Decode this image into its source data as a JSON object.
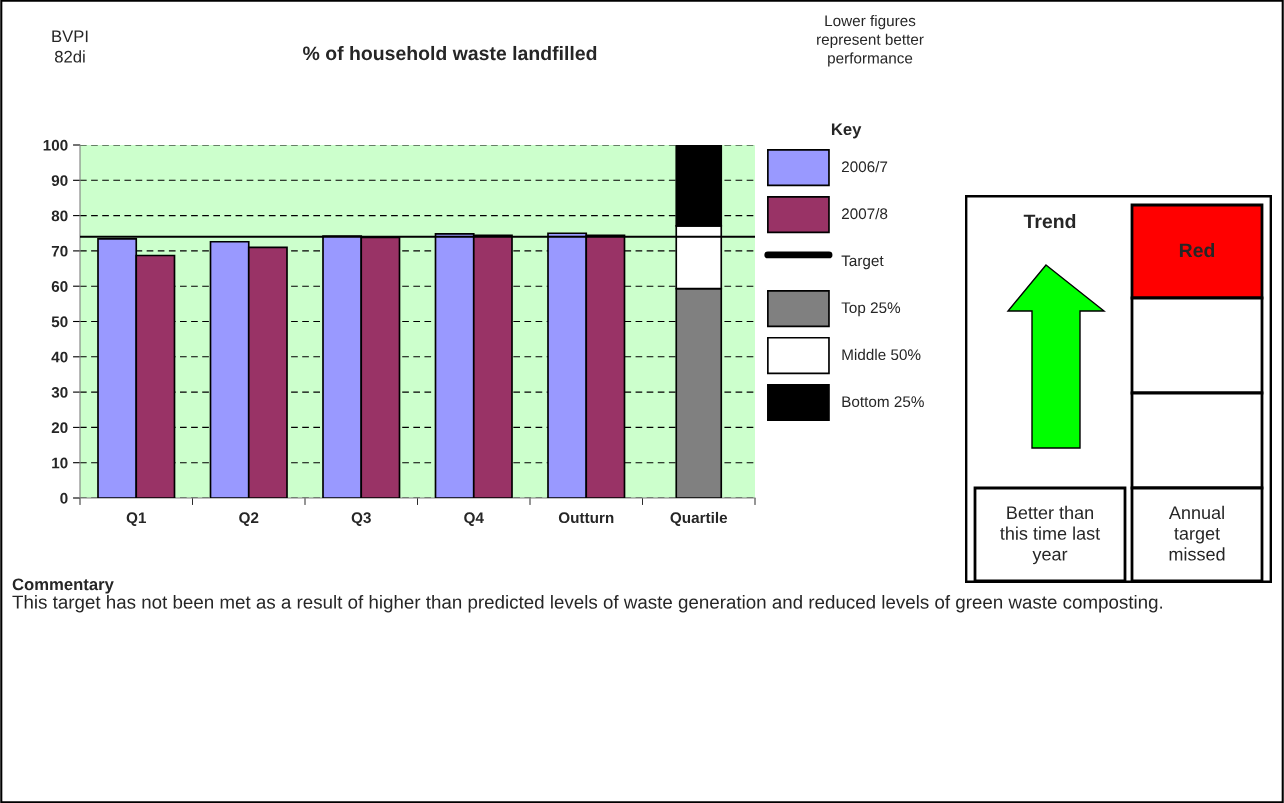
{
  "chart_data": [
    {
      "type": "bar",
      "title": "% of household waste landfilled",
      "categories": [
        "Q1",
        "Q2",
        "Q3",
        "Q4",
        "Outturn",
        "Quartile"
      ],
      "series": [
        {
          "name": "2006/7",
          "color": "#9999ff",
          "values": [
            73.4,
            72.6,
            74.2,
            74.8,
            75.0,
            null
          ]
        },
        {
          "name": "2007/8",
          "color": "#993366",
          "values": [
            68.7,
            71.0,
            73.8,
            74.4,
            74.4,
            null
          ]
        },
        {
          "name": "Top 25%",
          "color": "#808080",
          "base": [
            null,
            null,
            null,
            null,
            null,
            0
          ],
          "values": [
            null,
            null,
            null,
            null,
            null,
            59.3
          ]
        },
        {
          "name": "Middle 50%",
          "color": "#ffffff",
          "base": [
            null,
            null,
            null,
            null,
            null,
            59.3
          ],
          "values": [
            null,
            null,
            null,
            null,
            null,
            17.8
          ]
        },
        {
          "name": "Bottom 25%",
          "color": "#000000",
          "base": [
            null,
            null,
            null,
            null,
            null,
            77.1
          ],
          "values": [
            null,
            null,
            null,
            null,
            null,
            22.9
          ]
        }
      ],
      "ref_lines": [
        {
          "axis": "y",
          "value": 74,
          "label": "Target",
          "color": "#000000"
        }
      ],
      "ylim": [
        0,
        100
      ],
      "yticks": [
        0,
        10,
        20,
        30,
        40,
        50,
        60,
        70,
        80,
        90,
        100
      ],
      "grid": "y",
      "legend": "right",
      "legend_title": "Key",
      "annotations": [
        "BVPI\n82di",
        "Lower figures\nrepresent better\nperformance",
        "Commentary",
        "This target has not been met as a result of higher than predicted levels of waste generation and reduced levels of green waste composting."
      ]
    },
    {
      "type": "other",
      "title": "Trend",
      "annotations": [
        "Red",
        "Better than\nthis time last\nyear",
        "Annual\ntarget\nmissed"
      ]
    }
  ]
}
